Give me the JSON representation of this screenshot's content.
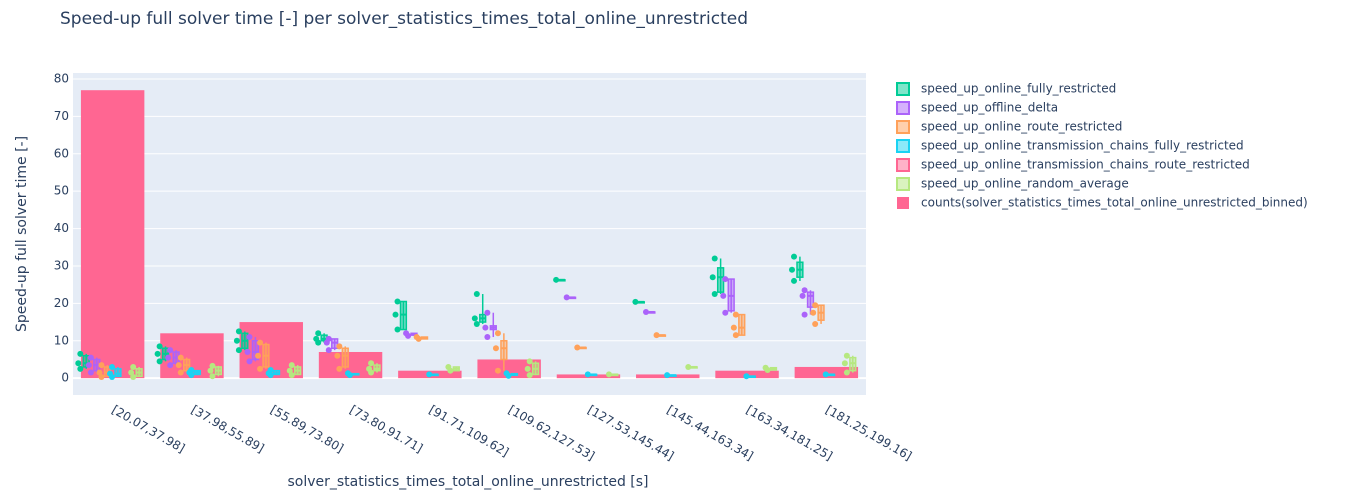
{
  "chart_data": {
    "type": "box",
    "title": "Speed-up full solver time [-] per solver_statistics_times_total_online_unrestricted",
    "x_label": "solver_statistics_times_total_online_unrestricted [s]",
    "y_label": "Speed-up full solver time [-]",
    "categories": [
      "[20.07,37.98]",
      "[37.98,55.89]",
      "[55.89,73.80]",
      "[73.80,91.71]",
      "[91.71,109.62]",
      "[109.62,127.53]",
      "[127.53,145.44]",
      "[145.44,163.34]",
      "[163.34,181.25]",
      "[181.25,199.16]"
    ],
    "ylim": [
      -4.5,
      81.6
    ],
    "yticks": [
      0,
      10,
      20,
      30,
      40,
      50,
      60,
      70,
      80
    ],
    "grid": true,
    "legend_position": "right",
    "bars": {
      "name": "counts(solver_statistics_times_total_online_unrestricted_binned)",
      "color": "#ff6692",
      "values": [
        77,
        12,
        15,
        7,
        2,
        5,
        1,
        1,
        2,
        3
      ]
    },
    "series": [
      {
        "name": "speed_up_online_fully_restricted",
        "color": "#00cc96",
        "values": [
          {
            "min": 2.5,
            "q1": 3,
            "median": 4,
            "q3": 6,
            "max": 6.5,
            "points": [
              2.5,
              4,
              6.5
            ]
          },
          {
            "min": 4.5,
            "q1": 5,
            "median": 6.5,
            "q3": 8,
            "max": 8.5,
            "points": [
              4.5,
              6.5,
              8.5
            ]
          },
          {
            "min": 7.5,
            "q1": 8,
            "median": 10,
            "q3": 12,
            "max": 12.5,
            "points": [
              7.5,
              10,
              12.5
            ]
          },
          {
            "min": 9.5,
            "q1": 10,
            "median": 10.5,
            "q3": 11.5,
            "max": 12,
            "points": [
              9.5,
              10.5,
              12
            ]
          },
          {
            "min": 13,
            "q1": 13,
            "median": 17,
            "q3": 20.5,
            "max": 20.5,
            "points": [
              13,
              17,
              20.5
            ]
          },
          {
            "min": 14.5,
            "q1": 15,
            "median": 16,
            "q3": 17,
            "max": 22.5,
            "points": [
              14.5,
              16,
              22.5
            ]
          },
          {
            "min": 26.3,
            "q1": 26.3,
            "median": 26.3,
            "q3": 26.3,
            "max": 26.3,
            "points": [
              26.3
            ]
          },
          {
            "min": 20.4,
            "q1": 20.4,
            "median": 20.4,
            "q3": 20.4,
            "max": 20.4,
            "points": [
              20.4
            ]
          },
          {
            "min": 22.5,
            "q1": 23,
            "median": 27,
            "q3": 29.5,
            "max": 32,
            "points": [
              22.5,
              27,
              32
            ]
          },
          {
            "min": 26,
            "q1": 27,
            "median": 29,
            "q3": 31,
            "max": 32.5,
            "points": [
              26,
              29,
              32.5
            ]
          }
        ]
      },
      {
        "name": "speed_up_offline_delta",
        "color": "#ab63fa",
        "values": [
          {
            "min": 1.5,
            "q1": 2,
            "median": 3.5,
            "q3": 5,
            "max": 5.5,
            "points": [
              1.5,
              3.5,
              5.5
            ]
          },
          {
            "min": 3.5,
            "q1": 4,
            "median": 5.5,
            "q3": 7,
            "max": 7.5,
            "points": [
              3.5,
              5.5,
              7.5
            ]
          },
          {
            "min": 4.5,
            "q1": 5,
            "median": 7,
            "q3": 10,
            "max": 11,
            "points": [
              4.5,
              7,
              11
            ]
          },
          {
            "min": 7.5,
            "q1": 8,
            "median": 9.5,
            "q3": 10.5,
            "max": 10.5,
            "points": [
              7.5,
              9.5,
              10.5
            ]
          },
          {
            "min": 11.3,
            "q1": 11.5,
            "median": 11.7,
            "q3": 12,
            "max": 12,
            "points": [
              11.3,
              12
            ]
          },
          {
            "min": 11,
            "q1": 13,
            "median": 13.5,
            "q3": 14,
            "max": 17.5,
            "points": [
              11,
              13.5,
              17.5
            ]
          },
          {
            "min": 21.6,
            "q1": 21.6,
            "median": 21.6,
            "q3": 21.6,
            "max": 21.6,
            "points": [
              21.6
            ]
          },
          {
            "min": 17.7,
            "q1": 17.7,
            "median": 17.7,
            "q3": 17.7,
            "max": 17.7,
            "points": [
              17.7
            ]
          },
          {
            "min": 17.5,
            "q1": 18,
            "median": 22,
            "q3": 26.5,
            "max": 26.5,
            "points": [
              17.5,
              22,
              26.5
            ]
          },
          {
            "min": 17,
            "q1": 19,
            "median": 22,
            "q3": 23,
            "max": 23.5,
            "points": [
              17,
              22,
              23.5
            ]
          }
        ]
      },
      {
        "name": "speed_up_online_route_restricted",
        "color": "#ffa15a",
        "values": [
          {
            "min": 0.3,
            "q1": 0.5,
            "median": 1.5,
            "q3": 3,
            "max": 3.5,
            "points": [
              0.3,
              1.5,
              3.5
            ]
          },
          {
            "min": 1.5,
            "q1": 2,
            "median": 3.5,
            "q3": 5,
            "max": 5.5,
            "points": [
              1.5,
              3.5,
              5.5
            ]
          },
          {
            "min": 2.5,
            "q1": 3,
            "median": 6,
            "q3": 9,
            "max": 9.5,
            "points": [
              2.5,
              6,
              9.5
            ]
          },
          {
            "min": 2.5,
            "q1": 3,
            "median": 6,
            "q3": 8,
            "max": 8.5,
            "points": [
              2.5,
              6,
              8.5
            ]
          },
          {
            "min": 10.5,
            "q1": 10.5,
            "median": 10.8,
            "q3": 11,
            "max": 11,
            "points": [
              10.5,
              11
            ]
          },
          {
            "min": 2,
            "q1": 5,
            "median": 8,
            "q3": 10,
            "max": 12,
            "points": [
              2,
              8,
              12
            ]
          },
          {
            "min": 8.2,
            "q1": 8.2,
            "median": 8.2,
            "q3": 8.2,
            "max": 8.2,
            "points": [
              8.2
            ]
          },
          {
            "min": 11.5,
            "q1": 11.5,
            "median": 11.5,
            "q3": 11.5,
            "max": 11.5,
            "points": [
              11.5
            ]
          },
          {
            "min": 11.5,
            "q1": 11.5,
            "median": 13.5,
            "q3": 17,
            "max": 17,
            "points": [
              11.5,
              13.5,
              17
            ]
          },
          {
            "min": 14.5,
            "q1": 15.5,
            "median": 17.5,
            "q3": 19.5,
            "max": 19.5,
            "points": [
              14.5,
              17.5,
              19.5
            ]
          }
        ]
      },
      {
        "name": "speed_up_online_transmission_chains_fully_restricted",
        "color": "#19d3f3",
        "values": [
          {
            "min": 0.3,
            "q1": 0.5,
            "median": 1.2,
            "q3": 2.5,
            "max": 3,
            "points": [
              0.3,
              1.2,
              3
            ]
          },
          {
            "min": 0.8,
            "q1": 1,
            "median": 1.5,
            "q3": 2,
            "max": 2.2,
            "points": [
              0.8,
              1.5,
              2.2
            ]
          },
          {
            "min": 0.8,
            "q1": 1,
            "median": 1.3,
            "q3": 2,
            "max": 2.2,
            "points": [
              0.8,
              1.3,
              2.2
            ]
          },
          {
            "min": 0.8,
            "q1": 0.9,
            "median": 1,
            "q3": 1.2,
            "max": 1.3,
            "points": [
              0.8,
              1.3
            ]
          },
          {
            "min": 1,
            "q1": 1,
            "median": 1,
            "q3": 1,
            "max": 1,
            "points": [
              1
            ]
          },
          {
            "min": 0.6,
            "q1": 0.8,
            "median": 1,
            "q3": 1.2,
            "max": 1.3,
            "points": [
              0.6,
              1.3
            ]
          },
          {
            "min": 1,
            "q1": 1,
            "median": 1,
            "q3": 1,
            "max": 1,
            "points": [
              1
            ]
          },
          {
            "min": 0.8,
            "q1": 0.8,
            "median": 0.8,
            "q3": 0.8,
            "max": 0.8,
            "points": [
              0.8
            ]
          },
          {
            "min": 0.5,
            "q1": 0.5,
            "median": 0.5,
            "q3": 0.5,
            "max": 0.5,
            "points": [
              0.5
            ]
          },
          {
            "min": 1,
            "q1": 1,
            "median": 1,
            "q3": 1,
            "max": 1,
            "points": [
              1
            ]
          }
        ]
      },
      {
        "name": "speed_up_online_transmission_chains_route_restricted",
        "color": "#ff6692",
        "values": [
          null,
          null,
          null,
          null,
          null,
          null,
          null,
          null,
          null,
          null
        ]
      },
      {
        "name": "speed_up_online_random_average",
        "color": "#b6e880",
        "values": [
          {
            "min": 0.3,
            "q1": 0.5,
            "median": 1.5,
            "q3": 2.5,
            "max": 3,
            "points": [
              0.3,
              1.5,
              3
            ]
          },
          {
            "min": 0.5,
            "q1": 1,
            "median": 2,
            "q3": 3,
            "max": 3.3,
            "points": [
              0.5,
              2,
              3.3
            ]
          },
          {
            "min": 0.8,
            "q1": 1,
            "median": 2,
            "q3": 3,
            "max": 3.5,
            "points": [
              0.8,
              2,
              3.5
            ]
          },
          {
            "min": 1.5,
            "q1": 2,
            "median": 2.5,
            "q3": 3.5,
            "max": 4,
            "points": [
              1.5,
              2.5,
              4
            ]
          },
          {
            "min": 2,
            "q1": 2,
            "median": 2.5,
            "q3": 3,
            "max": 3,
            "points": [
              2,
              3
            ]
          },
          {
            "min": 0.8,
            "q1": 1,
            "median": 2.5,
            "q3": 4,
            "max": 4.5,
            "points": [
              0.8,
              2.5,
              4.5
            ]
          },
          {
            "min": 1,
            "q1": 1,
            "median": 1,
            "q3": 1,
            "max": 1,
            "points": [
              1
            ]
          },
          {
            "min": 3,
            "q1": 3,
            "median": 3,
            "q3": 3,
            "max": 3,
            "points": [
              3
            ]
          },
          {
            "min": 2.2,
            "q1": 2.2,
            "median": 2.5,
            "q3": 2.8,
            "max": 2.8,
            "points": [
              2.2,
              2.8
            ]
          },
          {
            "min": 1.5,
            "q1": 2,
            "median": 4,
            "q3": 5.5,
            "max": 6,
            "points": [
              1.5,
              4,
              6
            ]
          }
        ]
      }
    ]
  }
}
